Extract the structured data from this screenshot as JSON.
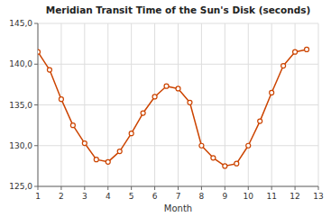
{
  "chart_data": {
    "type": "line",
    "title": "Meridian Transit Time of the Sun's Disk (seconds)",
    "x_label": "Month",
    "x": [
      1,
      1.5,
      2,
      2.5,
      3,
      3.5,
      4,
      4.5,
      5,
      5.5,
      6,
      6.5,
      7,
      7.5,
      8,
      8.5,
      9,
      9.5,
      10,
      10.5,
      11,
      11.5,
      12,
      12.5
    ],
    "values": [
      141.5,
      139.3,
      135.7,
      132.5,
      130.3,
      128.3,
      128.0,
      129.3,
      131.5,
      134.0,
      136.0,
      137.3,
      137.0,
      135.3,
      130.0,
      128.5,
      127.5,
      127.8,
      130.0,
      133.0,
      136.5,
      139.8,
      141.5,
      141.8
    ],
    "color": "#cc4400",
    "marker": "circle",
    "xlim": [
      1,
      13
    ],
    "ylim": [
      125.0,
      145.0
    ],
    "xticks": [
      1,
      2,
      3,
      4,
      5,
      6,
      7,
      8,
      9,
      10,
      11,
      12,
      13
    ],
    "yticks": [
      {
        "value": 125.0,
        "label": "125,0"
      },
      {
        "value": 130.0,
        "label": "130,0"
      },
      {
        "value": 135.0,
        "label": "135,0"
      },
      {
        "value": 140.0,
        "label": "140,0"
      },
      {
        "value": 145.0,
        "label": "145,0"
      }
    ],
    "grid": true
  }
}
